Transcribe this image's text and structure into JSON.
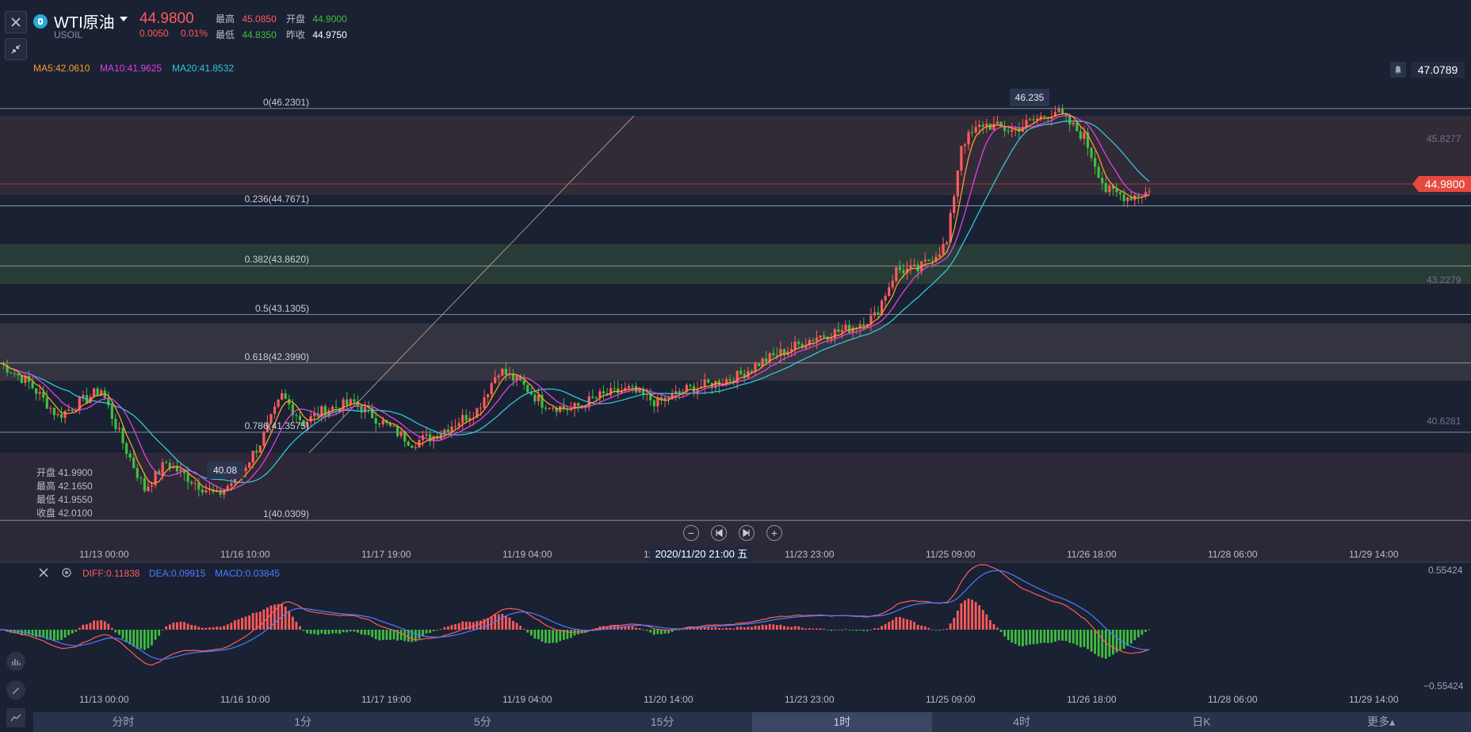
{
  "header": {
    "name": "WTI原油",
    "symbol": "USOIL",
    "price": "44.9800",
    "change": "0.0050",
    "change_pct": "0.01%",
    "high_label": "最高",
    "high": "45.0850",
    "open_label": "开盘",
    "open": "44.9000",
    "low_label": "最低",
    "low": "44.8350",
    "prevclose_label": "昨收",
    "prevclose": "44.9750"
  },
  "ma_legend": {
    "ma5": "MA5:42.0610",
    "ma10": "MA10:41.9625",
    "ma20": "MA20:41.8532"
  },
  "price_axis": {
    "top_value": "47.0789",
    "last_price": "44.9800",
    "ticks": [
      "45.8277",
      "43.2279",
      "40.6281"
    ]
  },
  "fib_labels": [
    "0(46.2301)",
    "0.236(44.7671)",
    "0.382(43.8620)",
    "0.5(43.1305)",
    "0.618(42.3990)",
    "0.786(41.3575)",
    "1(40.0309)"
  ],
  "high_marker": "46.235",
  "low_marker": "40.08",
  "ohlc_panel": {
    "open": "开盘 41.9900",
    "high": "最高 42.1650",
    "low": "最低 41.9550",
    "close": "收盘 42.0100"
  },
  "x_axis_main": [
    "11/13 00:00",
    "11/16 10:00",
    "11/17 19:00",
    "11/19 04:00",
    "11/20",
    "11/23 23:00",
    "11/25 09:00",
    "11/26 18:00",
    "11/28 06:00",
    "11/29 14:00"
  ],
  "crosshair_time": "2020/11/20 21:00 五",
  "macd": {
    "diff": "DIFF:0.11838",
    "dea": "DEA:0.09915",
    "macd": "MACD:0.03845",
    "axis_top": "0.55424",
    "axis_bottom": "−0.55424"
  },
  "x_axis_macd": [
    "11/13 00:00",
    "11/16 10:00",
    "11/17 19:00",
    "11/19 04:00",
    "11/20 14:00",
    "11/23 23:00",
    "11/25 09:00",
    "11/26 18:00",
    "11/28 06:00",
    "11/29 14:00"
  ],
  "tabs": [
    "分时",
    "1分",
    "5分",
    "15分",
    "1时",
    "4时",
    "日K",
    "更多▴"
  ],
  "active_tab": "1时",
  "colors": {
    "up": "#ff5b5b",
    "down": "#3fbf3f",
    "ma5": "#ff9a2e",
    "ma10": "#e040e0",
    "ma20": "#2fc6d8",
    "diff": "#ff5b5b",
    "dea": "#4a7dff"
  },
  "chart_data": {
    "type": "candlestick",
    "y_range": [
      39.4,
      47.1
    ],
    "fib_levels": [
      46.2301,
      44.7671,
      43.862,
      43.1305,
      42.399,
      41.3575,
      40.0309
    ],
    "close_path": [
      [
        0,
        42.4
      ],
      [
        8,
        42.1
      ],
      [
        16,
        41.6
      ],
      [
        22,
        41.8
      ],
      [
        28,
        42.0
      ],
      [
        34,
        41.2
      ],
      [
        40,
        40.5
      ],
      [
        46,
        40.9
      ],
      [
        54,
        40.6
      ],
      [
        60,
        40.4
      ],
      [
        66,
        40.7
      ],
      [
        72,
        41.2
      ],
      [
        78,
        41.9
      ],
      [
        84,
        41.5
      ],
      [
        90,
        41.7
      ],
      [
        98,
        41.8
      ],
      [
        106,
        41.5
      ],
      [
        114,
        41.2
      ],
      [
        120,
        41.3
      ],
      [
        126,
        41.5
      ],
      [
        132,
        41.7
      ],
      [
        138,
        42.3
      ],
      [
        144,
        42.1
      ],
      [
        150,
        41.8
      ],
      [
        158,
        41.7
      ],
      [
        166,
        41.9
      ],
      [
        174,
        42.0
      ],
      [
        182,
        41.8
      ],
      [
        190,
        42.0
      ],
      [
        198,
        42.1
      ],
      [
        204,
        42.2
      ],
      [
        210,
        42.4
      ],
      [
        218,
        42.6
      ],
      [
        226,
        42.8
      ],
      [
        234,
        42.9
      ],
      [
        242,
        43.1
      ],
      [
        248,
        43.8
      ],
      [
        254,
        43.8
      ],
      [
        262,
        44.2
      ],
      [
        266,
        45.7
      ],
      [
        272,
        46.0
      ],
      [
        280,
        45.9
      ],
      [
        288,
        46.1
      ],
      [
        292,
        46.2
      ],
      [
        300,
        45.8
      ],
      [
        306,
        45.0
      ],
      [
        312,
        44.9
      ],
      [
        318,
        44.98
      ]
    ],
    "close_x_end": 318,
    "macd_hist_range": [
      -0.55424,
      0.55424
    ]
  }
}
